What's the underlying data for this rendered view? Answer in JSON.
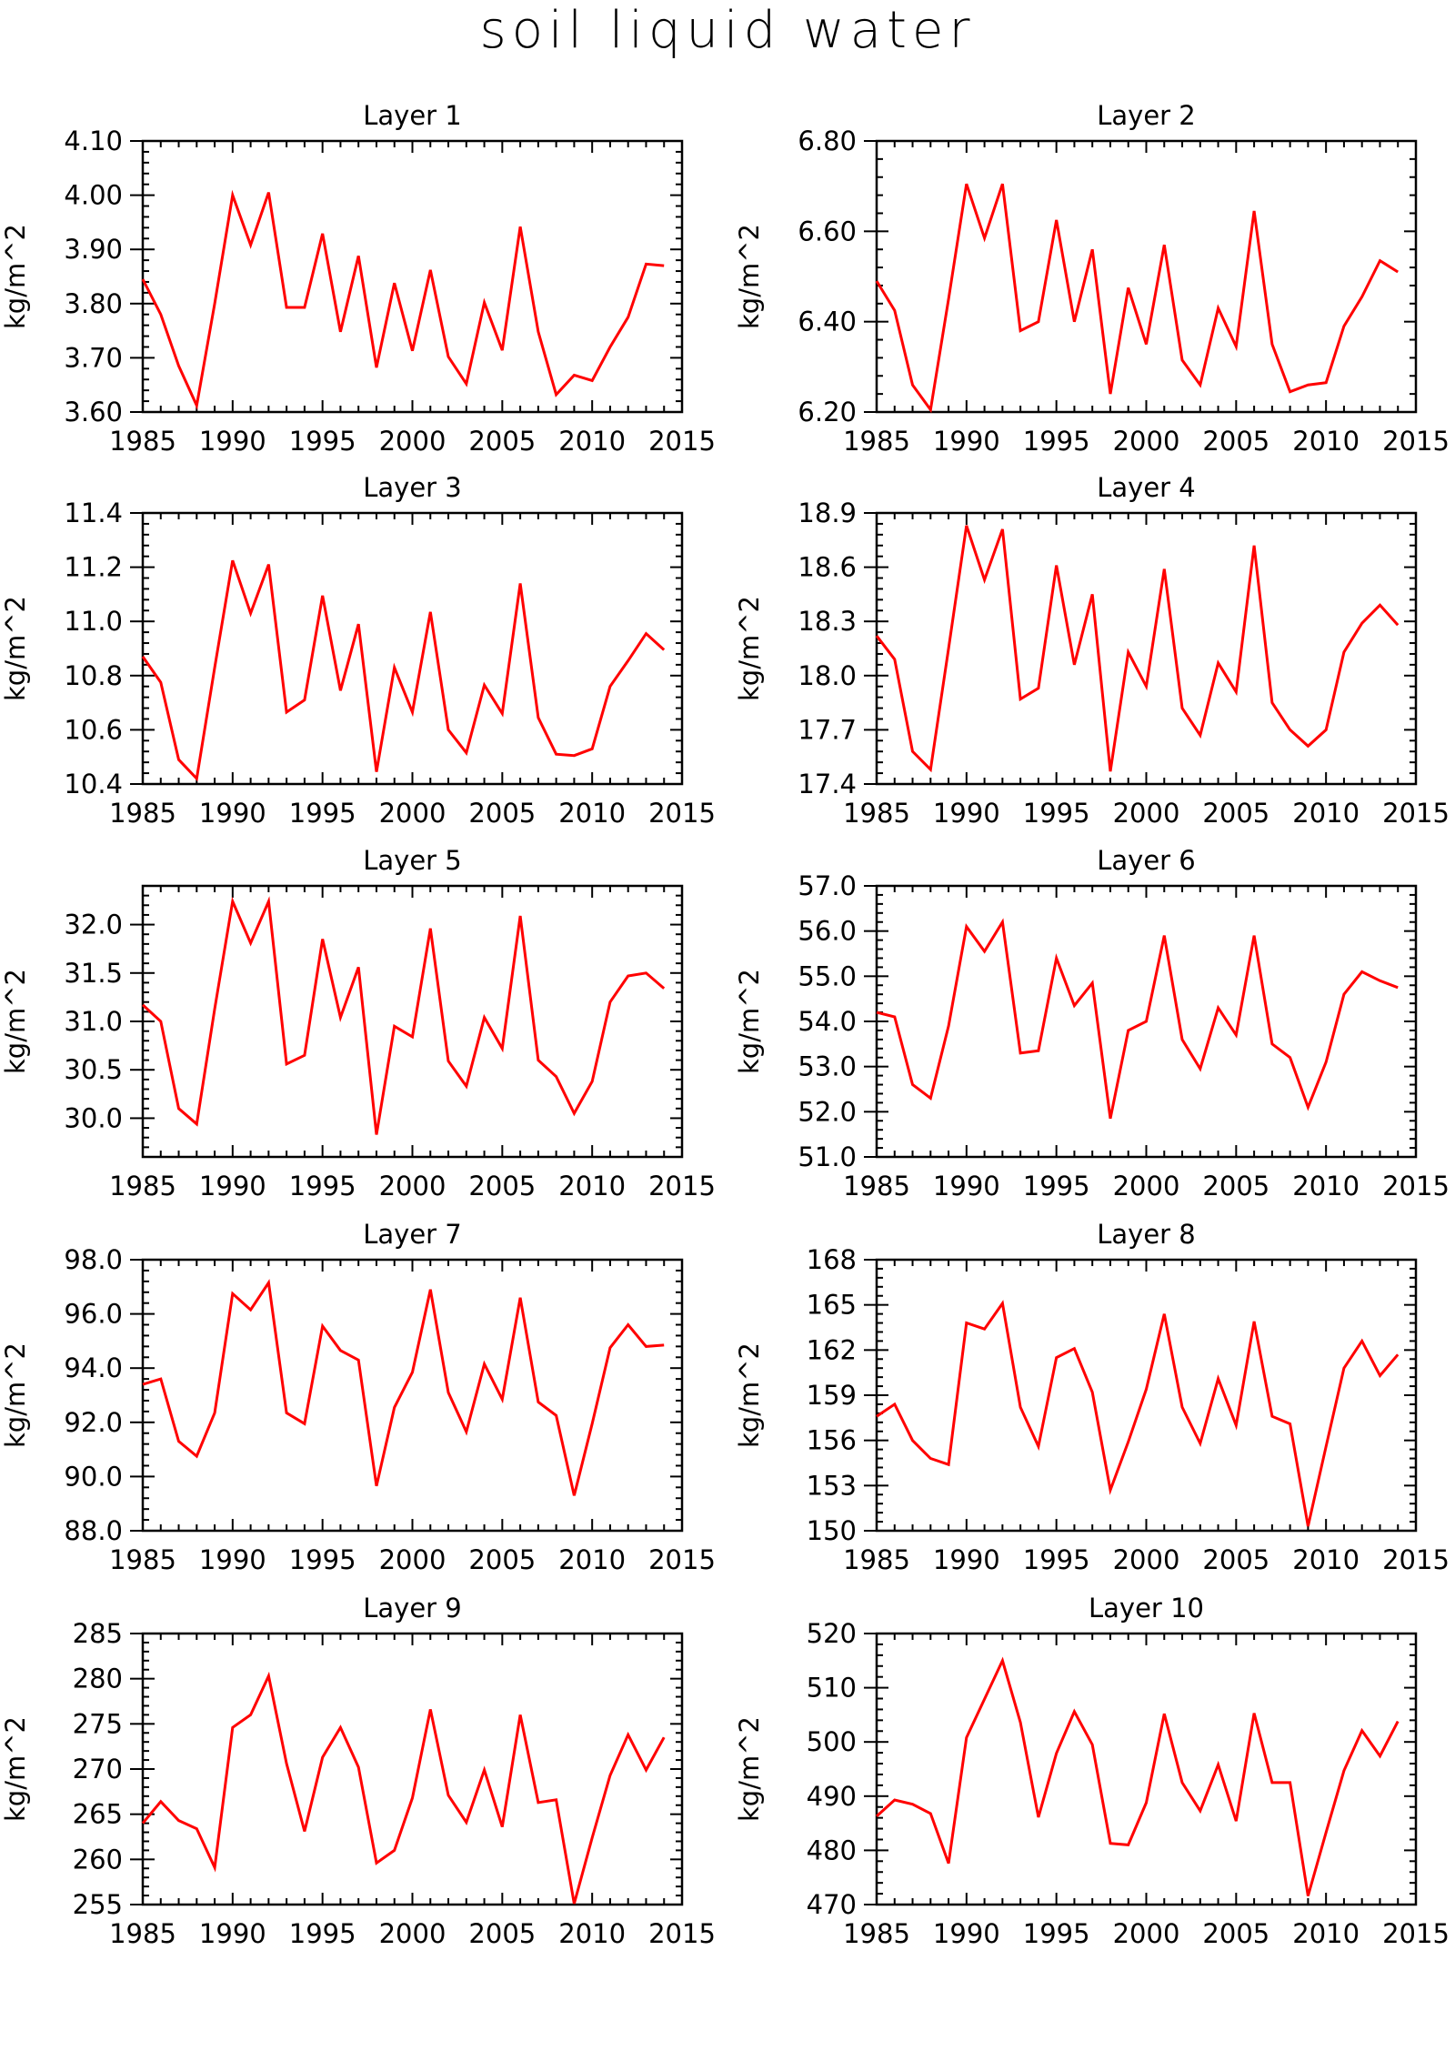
{
  "figure": {
    "title": "soil liquid water",
    "footer": ""
  },
  "chart_data": [
    {
      "type": "line",
      "title": "Layer 1",
      "ylabel": "kg/m^2",
      "xlim": [
        1985,
        2015
      ],
      "ylim": [
        3.6,
        4.1
      ],
      "xticks": [
        1985,
        1990,
        1995,
        2000,
        2005,
        2010,
        2015
      ],
      "yticks": [
        "3.60",
        "3.70",
        "3.80",
        "3.90",
        "4.00",
        "4.10"
      ],
      "color": "#ff0000",
      "x": [
        1985,
        1986,
        1987,
        1988,
        1989,
        1990,
        1991,
        1992,
        1993,
        1994,
        1995,
        1996,
        1997,
        1998,
        1999,
        2000,
        2001,
        2002,
        2003,
        2004,
        2005,
        2006,
        2007,
        2008,
        2009,
        2010,
        2011,
        2012,
        2013,
        2014
      ],
      "y": [
        3.845,
        3.78,
        3.685,
        3.612,
        3.8,
        4.0,
        3.908,
        4.005,
        3.793,
        3.793,
        3.929,
        3.748,
        3.888,
        3.682,
        3.838,
        3.713,
        3.862,
        3.702,
        3.652,
        3.802,
        3.714,
        3.942,
        3.748,
        3.632,
        3.668,
        3.658,
        3.72,
        3.775,
        3.873,
        3.87
      ]
    },
    {
      "type": "line",
      "title": "Layer 2",
      "ylabel": "kg/m^2",
      "xlim": [
        1985,
        2015
      ],
      "ylim": [
        6.2,
        6.8
      ],
      "xticks": [
        1985,
        1990,
        1995,
        2000,
        2005,
        2010,
        2015
      ],
      "yticks": [
        "6.20",
        "6.40",
        "6.60",
        "6.80"
      ],
      "color": "#ff0000",
      "x": [
        1985,
        1986,
        1987,
        1988,
        1989,
        1990,
        1991,
        1992,
        1993,
        1994,
        1995,
        1996,
        1997,
        1998,
        1999,
        2000,
        2001,
        2002,
        2003,
        2004,
        2005,
        2006,
        2007,
        2008,
        2009,
        2010,
        2011,
        2012,
        2013,
        2014
      ],
      "y": [
        6.49,
        6.425,
        6.26,
        6.205,
        6.45,
        6.705,
        6.585,
        6.705,
        6.38,
        6.4,
        6.625,
        6.4,
        6.56,
        6.24,
        6.475,
        6.35,
        6.57,
        6.315,
        6.26,
        6.43,
        6.345,
        6.645,
        6.35,
        6.245,
        6.26,
        6.265,
        6.39,
        6.455,
        6.535,
        6.51
      ]
    },
    {
      "type": "line",
      "title": "Layer 3",
      "ylabel": "kg/m^2",
      "xlim": [
        1985,
        2015
      ],
      "ylim": [
        10.4,
        11.4
      ],
      "xticks": [
        1985,
        1990,
        1995,
        2000,
        2005,
        2010,
        2015
      ],
      "yticks": [
        "10.4",
        "10.6",
        "10.8",
        "11.0",
        "11.2",
        "11.4"
      ],
      "color": "#ff0000",
      "x": [
        1985,
        1986,
        1987,
        1988,
        1989,
        1990,
        1991,
        1992,
        1993,
        1994,
        1995,
        1996,
        1997,
        1998,
        1999,
        2000,
        2001,
        2002,
        2003,
        2004,
        2005,
        2006,
        2007,
        2008,
        2009,
        2010,
        2011,
        2012,
        2013,
        2014
      ],
      "y": [
        10.87,
        10.775,
        10.49,
        10.42,
        10.83,
        11.225,
        11.03,
        11.21,
        10.665,
        10.71,
        11.095,
        10.745,
        10.99,
        10.445,
        10.83,
        10.665,
        11.035,
        10.6,
        10.515,
        10.765,
        10.66,
        11.14,
        10.645,
        10.51,
        10.505,
        10.53,
        10.76,
        10.855,
        10.955,
        10.895
      ]
    },
    {
      "type": "line",
      "title": "Layer 4",
      "ylabel": "kg/m^2",
      "xlim": [
        1985,
        2015
      ],
      "ylim": [
        17.4,
        18.9
      ],
      "xticks": [
        1985,
        1990,
        1995,
        2000,
        2005,
        2010,
        2015
      ],
      "yticks": [
        "17.4",
        "17.7",
        "18.0",
        "18.3",
        "18.6",
        "18.9"
      ],
      "color": "#ff0000",
      "x": [
        1985,
        1986,
        1987,
        1988,
        1989,
        1990,
        1991,
        1992,
        1993,
        1994,
        1995,
        1996,
        1997,
        1998,
        1999,
        2000,
        2001,
        2002,
        2003,
        2004,
        2005,
        2006,
        2007,
        2008,
        2009,
        2010,
        2011,
        2012,
        2013,
        2014
      ],
      "y": [
        18.22,
        18.09,
        17.58,
        17.48,
        18.15,
        18.83,
        18.53,
        18.81,
        17.87,
        17.93,
        18.61,
        18.06,
        18.45,
        17.47,
        18.13,
        17.94,
        18.59,
        17.82,
        17.67,
        18.07,
        17.91,
        18.72,
        17.85,
        17.7,
        17.61,
        17.7,
        18.13,
        18.29,
        18.39,
        18.28
      ]
    },
    {
      "type": "line",
      "title": "Layer 5",
      "ylabel": "kg/m^2",
      "xlim": [
        1985,
        2015
      ],
      "ylim": [
        29.6,
        32.4
      ],
      "xticks": [
        1985,
        1990,
        1995,
        2000,
        2005,
        2010,
        2015
      ],
      "yticks": [
        "30.0",
        "30.5",
        "31.0",
        "31.5",
        "32.0"
      ],
      "color": "#ff0000",
      "x": [
        1985,
        1986,
        1987,
        1988,
        1989,
        1990,
        1991,
        1992,
        1993,
        1994,
        1995,
        1996,
        1997,
        1998,
        1999,
        2000,
        2001,
        2002,
        2003,
        2004,
        2005,
        2006,
        2007,
        2008,
        2009,
        2010,
        2011,
        2012,
        2013,
        2014
      ],
      "y": [
        31.17,
        31.0,
        30.1,
        29.94,
        31.13,
        32.24,
        31.81,
        32.24,
        30.56,
        30.65,
        31.85,
        31.04,
        31.56,
        29.83,
        30.95,
        30.84,
        31.96,
        30.59,
        30.33,
        31.04,
        30.72,
        32.09,
        30.6,
        30.43,
        30.05,
        30.38,
        31.2,
        31.47,
        31.5,
        31.34
      ]
    },
    {
      "type": "line",
      "title": "Layer 6",
      "ylabel": "kg/m^2",
      "xlim": [
        1985,
        2015
      ],
      "ylim": [
        51.0,
        57.0
      ],
      "xticks": [
        1985,
        1990,
        1995,
        2000,
        2005,
        2010,
        2015
      ],
      "yticks": [
        "51.0",
        "52.0",
        "53.0",
        "54.0",
        "55.0",
        "56.0",
        "57.0"
      ],
      "color": "#ff0000",
      "x": [
        1985,
        1986,
        1987,
        1988,
        1989,
        1990,
        1991,
        1992,
        1993,
        1994,
        1995,
        1996,
        1997,
        1998,
        1999,
        2000,
        2001,
        2002,
        2003,
        2004,
        2005,
        2006,
        2007,
        2008,
        2009,
        2010,
        2011,
        2012,
        2013,
        2014
      ],
      "y": [
        54.2,
        54.1,
        52.6,
        52.3,
        53.9,
        56.1,
        55.55,
        56.2,
        53.3,
        53.35,
        55.4,
        54.35,
        54.85,
        51.85,
        53.8,
        54.0,
        55.9,
        53.6,
        52.95,
        54.3,
        53.7,
        55.9,
        53.5,
        53.2,
        52.1,
        53.1,
        54.6,
        55.1,
        54.9,
        54.75
      ]
    },
    {
      "type": "line",
      "title": "Layer 7",
      "ylabel": "kg/m^2",
      "xlim": [
        1985,
        2015
      ],
      "ylim": [
        88.0,
        98.0
      ],
      "xticks": [
        1985,
        1990,
        1995,
        2000,
        2005,
        2010,
        2015
      ],
      "yticks": [
        "88.0",
        "90.0",
        "92.0",
        "94.0",
        "96.0",
        "98.0"
      ],
      "color": "#ff0000",
      "x": [
        1985,
        1986,
        1987,
        1988,
        1989,
        1990,
        1991,
        1992,
        1993,
        1994,
        1995,
        1996,
        1997,
        1998,
        1999,
        2000,
        2001,
        2002,
        2003,
        2004,
        2005,
        2006,
        2007,
        2008,
        2009,
        2010,
        2011,
        2012,
        2013,
        2014
      ],
      "y": [
        93.4,
        93.6,
        91.3,
        90.75,
        92.35,
        96.75,
        96.15,
        97.15,
        92.35,
        91.95,
        95.55,
        94.65,
        94.3,
        89.65,
        92.55,
        93.85,
        96.9,
        93.1,
        91.65,
        94.15,
        92.85,
        96.6,
        92.75,
        92.25,
        89.3,
        91.95,
        94.75,
        95.6,
        94.8,
        94.85
      ]
    },
    {
      "type": "line",
      "title": "Layer 8",
      "ylabel": "kg/m^2",
      "xlim": [
        1985,
        2015
      ],
      "ylim": [
        150,
        168
      ],
      "xticks": [
        1985,
        1990,
        1995,
        2000,
        2005,
        2010,
        2015
      ],
      "yticks": [
        "150",
        "153",
        "156",
        "159",
        "162",
        "165",
        "168"
      ],
      "color": "#ff0000",
      "x": [
        1985,
        1986,
        1987,
        1988,
        1989,
        1990,
        1991,
        1992,
        1993,
        1994,
        1995,
        1996,
        1997,
        1998,
        1999,
        2000,
        2001,
        2002,
        2003,
        2004,
        2005,
        2006,
        2007,
        2008,
        2009,
        2010,
        2011,
        2012,
        2013,
        2014
      ],
      "y": [
        157.6,
        158.4,
        156.0,
        154.8,
        154.4,
        163.8,
        163.4,
        165.1,
        158.2,
        155.6,
        161.5,
        162.1,
        159.2,
        152.7,
        155.9,
        159.4,
        164.4,
        158.2,
        155.8,
        160.1,
        157.0,
        163.9,
        157.6,
        157.1,
        150.3,
        155.6,
        160.8,
        162.6,
        160.3,
        161.7
      ]
    },
    {
      "type": "line",
      "title": "Layer 9",
      "ylabel": "kg/m^2",
      "xlim": [
        1985,
        2015
      ],
      "ylim": [
        255,
        285
      ],
      "xticks": [
        1985,
        1990,
        1995,
        2000,
        2005,
        2010,
        2015
      ],
      "yticks": [
        "255",
        "260",
        "265",
        "270",
        "275",
        "280",
        "285"
      ],
      "color": "#ff0000",
      "x": [
        1985,
        1986,
        1987,
        1988,
        1989,
        1990,
        1991,
        1992,
        1993,
        1994,
        1995,
        1996,
        1997,
        1998,
        1999,
        2000,
        2001,
        2002,
        2003,
        2004,
        2005,
        2006,
        2007,
        2008,
        2009,
        2010,
        2011,
        2012,
        2013,
        2014
      ],
      "y": [
        264.0,
        266.4,
        264.3,
        263.4,
        259.1,
        274.6,
        276.0,
        280.3,
        270.6,
        263.1,
        271.3,
        274.6,
        270.2,
        259.6,
        261.0,
        266.8,
        276.6,
        267.1,
        264.1,
        269.9,
        263.6,
        276.0,
        266.3,
        266.6,
        255.1,
        262.4,
        269.3,
        273.8,
        269.9,
        273.5
      ]
    },
    {
      "type": "line",
      "title": "Layer 10",
      "ylabel": "kg/m^2",
      "xlim": [
        1985,
        2015
      ],
      "ylim": [
        470,
        520
      ],
      "xticks": [
        1985,
        1990,
        1995,
        2000,
        2005,
        2010,
        2015
      ],
      "yticks": [
        "470",
        "480",
        "490",
        "500",
        "510",
        "520"
      ],
      "color": "#ff0000",
      "x": [
        1985,
        1986,
        1987,
        1988,
        1989,
        1990,
        1991,
        1992,
        1993,
        1994,
        1995,
        1996,
        1997,
        1998,
        1999,
        2000,
        2001,
        2002,
        2003,
        2004,
        2005,
        2006,
        2007,
        2008,
        2009,
        2010,
        2011,
        2012,
        2013,
        2014
      ],
      "y": [
        486.3,
        489.3,
        488.5,
        486.8,
        477.6,
        500.8,
        507.9,
        515.0,
        503.6,
        486.1,
        497.9,
        505.6,
        499.5,
        481.3,
        481.0,
        488.8,
        505.2,
        492.5,
        487.3,
        495.8,
        485.4,
        505.3,
        492.5,
        492.5,
        471.6,
        483.3,
        494.7,
        502.1,
        497.4,
        503.8
      ]
    }
  ]
}
